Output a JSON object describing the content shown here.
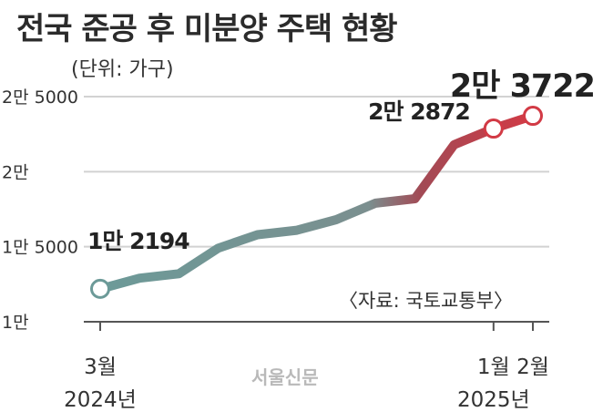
{
  "title": "전국 준공 후 미분양 주택 현황",
  "unit_note": "(단위: 가구)",
  "source_note": "〈자료: 국토교통부〉",
  "watermark": "서울신문",
  "colors": {
    "start": "#6c9a98",
    "end": "#d23a45",
    "grid": "#d2d2d2",
    "axis": "#555555"
  },
  "chart_data": {
    "type": "line",
    "title": "전국 준공 후 미분양 주택 현황",
    "ylabel": "",
    "xlabel": "",
    "ylim": [
      10000,
      25000
    ],
    "yticks": [
      {
        "value": 10000,
        "label": "1만"
      },
      {
        "value": 15000,
        "label": "1만 5000"
      },
      {
        "value": 20000,
        "label": "2만"
      },
      {
        "value": 25000,
        "label": "2만 5000"
      }
    ],
    "x": [
      "2024-03",
      "2024-04",
      "2024-05",
      "2024-06",
      "2024-07",
      "2024-08",
      "2024-09",
      "2024-10",
      "2024-11",
      "2024-12",
      "2025-01",
      "2025-02"
    ],
    "values": [
      12194,
      12900,
      13200,
      14900,
      15800,
      16100,
      16800,
      17900,
      18200,
      21800,
      22872,
      23722
    ],
    "xticks": [
      {
        "index": 0,
        "label": "3월",
        "sublabel": "2024년"
      },
      {
        "index": 10,
        "label": "1월",
        "sublabel": "2025년"
      },
      {
        "index": 11,
        "label": "2월",
        "sublabel": ""
      }
    ],
    "data_labels": [
      {
        "index": 0,
        "text": "1만 2194"
      },
      {
        "index": 10,
        "text": "2만 2872"
      },
      {
        "index": 11,
        "text": "2만 3722"
      }
    ],
    "grid": true
  }
}
